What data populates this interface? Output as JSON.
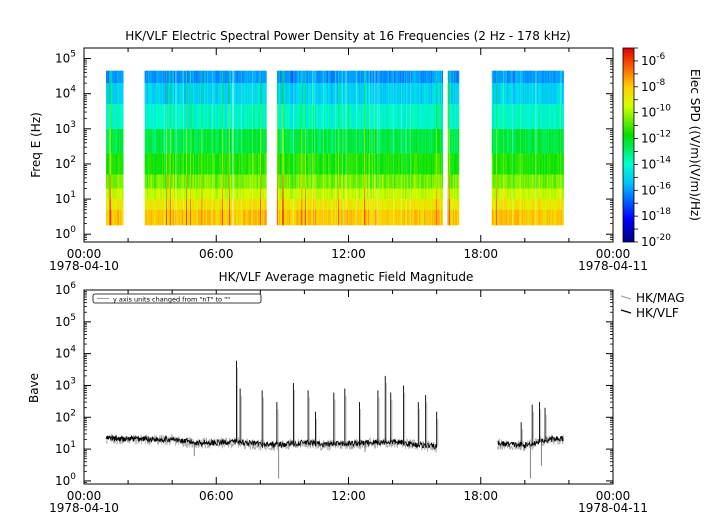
{
  "chart_data": [
    {
      "type": "heatmap",
      "title": "HK/VLF  Electric Spectral Power Density at 16 Frequencies (2 Hz - 178 kHz)",
      "ylabel": "Freq E (Hz)",
      "yscale": "log",
      "ylim": [
        0.6,
        200000
      ],
      "y_ticks": [
        {
          "base": "10",
          "exp": "0"
        },
        {
          "base": "10",
          "exp": "1"
        },
        {
          "base": "10",
          "exp": "2"
        },
        {
          "base": "10",
          "exp": "3"
        },
        {
          "base": "10",
          "exp": "4"
        },
        {
          "base": "10",
          "exp": "5"
        }
      ],
      "x_ticks": [
        {
          "label": "00:00",
          "date": "1978-04-10"
        },
        {
          "label": "06:00",
          "date": ""
        },
        {
          "label": "12:00",
          "date": ""
        },
        {
          "label": "18:00",
          "date": ""
        },
        {
          "label": "00:00",
          "date": "1978-04-11"
        }
      ],
      "frequency_range_hz": [
        2,
        178000
      ],
      "num_frequencies": 16,
      "data_intervals": [
        [
          "01:00",
          "01:45"
        ],
        [
          "02:45",
          "08:15"
        ],
        [
          "08:45",
          "16:15"
        ],
        [
          "16:30",
          "17:00"
        ],
        [
          "18:30",
          "21:45"
        ]
      ],
      "colorbar": {
        "label": "Elec SPD ((V/m)(V/m)/Hz)",
        "log_min": -20,
        "log_max": -5,
        "ticks": [
          {
            "base": "10",
            "exp": "-6"
          },
          {
            "base": "10",
            "exp": "-8"
          },
          {
            "base": "10",
            "exp": "-10"
          },
          {
            "base": "10",
            "exp": "-12"
          },
          {
            "base": "10",
            "exp": "-14"
          },
          {
            "base": "10",
            "exp": "-16"
          },
          {
            "base": "10",
            "exp": "-18"
          },
          {
            "base": "10",
            "exp": "-20"
          }
        ]
      },
      "spd_log10_by_freq_band": [
        {
          "freq_range_hz": [
            1.8,
            5
          ],
          "log_spd": -8
        },
        {
          "freq_range_hz": [
            5,
            10
          ],
          "log_spd": -8.7
        },
        {
          "freq_range_hz": [
            10,
            20
          ],
          "log_spd": -9.5
        },
        {
          "freq_range_hz": [
            20,
            50
          ],
          "log_spd": -10.5
        },
        {
          "freq_range_hz": [
            50,
            200
          ],
          "log_spd": -11.5
        },
        {
          "freq_range_hz": [
            200,
            1000
          ],
          "log_spd": -12.5
        },
        {
          "freq_range_hz": [
            1000,
            5000
          ],
          "log_spd": -14
        },
        {
          "freq_range_hz": [
            5000,
            20000
          ],
          "log_spd": -15
        },
        {
          "freq_range_hz": [
            20000,
            45000
          ],
          "log_spd": -16
        }
      ]
    },
    {
      "type": "line",
      "title": "HK/VLF  Average magnetic Field Magnitude",
      "ylabel": "Bave",
      "yscale": "log",
      "ylim": [
        0.8,
        1000000
      ],
      "annotation": "y axis units changed from \"nT\" to \"\"",
      "y_ticks": [
        {
          "base": "10",
          "exp": "0"
        },
        {
          "base": "10",
          "exp": "1"
        },
        {
          "base": "10",
          "exp": "2"
        },
        {
          "base": "10",
          "exp": "3"
        },
        {
          "base": "10",
          "exp": "4"
        },
        {
          "base": "10",
          "exp": "5"
        },
        {
          "base": "10",
          "exp": "6"
        }
      ],
      "x_ticks": [
        {
          "label": "00:00",
          "date": "1978-04-10"
        },
        {
          "label": "06:00",
          "date": ""
        },
        {
          "label": "12:00",
          "date": ""
        },
        {
          "label": "18:00",
          "date": ""
        },
        {
          "label": "00:00",
          "date": "1978-04-11"
        }
      ],
      "series": [
        {
          "name": "HK/MAG",
          "color": "#a8a8a8"
        },
        {
          "name": "HK/VLF",
          "color": "#000000"
        }
      ],
      "baseline": [
        {
          "x": "01:00",
          "y": 22
        },
        {
          "x": "01:45",
          "y": 21
        },
        {
          "x": "02:45",
          "y": 21
        },
        {
          "x": "04:00",
          "y": 20
        },
        {
          "x": "05:00",
          "y": 16
        },
        {
          "x": "06:00",
          "y": 16
        },
        {
          "x": "07:00",
          "y": 17
        },
        {
          "x": "08:00",
          "y": 14
        },
        {
          "x": "09:00",
          "y": 14
        },
        {
          "x": "10:00",
          "y": 16
        },
        {
          "x": "11:00",
          "y": 14
        },
        {
          "x": "12:00",
          "y": 15
        },
        {
          "x": "13:00",
          "y": 16
        },
        {
          "x": "14:00",
          "y": 17
        },
        {
          "x": "15:00",
          "y": 14
        },
        {
          "x": "16:00",
          "y": 12
        },
        {
          "x": "18:45",
          "y": 15
        },
        {
          "x": "19:30",
          "y": 14
        },
        {
          "x": "20:00",
          "y": 13
        },
        {
          "x": "20:30",
          "y": 16
        },
        {
          "x": "21:00",
          "y": 20
        },
        {
          "x": "21:45",
          "y": 22
        }
      ],
      "spikes": [
        {
          "x": "06:55",
          "y": 6000
        },
        {
          "x": "07:05",
          "y": 800
        },
        {
          "x": "08:05",
          "y": 700
        },
        {
          "x": "08:45",
          "y": 300
        },
        {
          "x": "09:30",
          "y": 1200
        },
        {
          "x": "10:10",
          "y": 700
        },
        {
          "x": "10:30",
          "y": 150
        },
        {
          "x": "11:20",
          "y": 600
        },
        {
          "x": "11:50",
          "y": 800
        },
        {
          "x": "12:30",
          "y": 300
        },
        {
          "x": "13:20",
          "y": 700
        },
        {
          "x": "13:40",
          "y": 2000
        },
        {
          "x": "13:55",
          "y": 600
        },
        {
          "x": "14:30",
          "y": 1000
        },
        {
          "x": "15:10",
          "y": 300
        },
        {
          "x": "15:30",
          "y": 500
        },
        {
          "x": "16:00",
          "y": 150
        },
        {
          "x": "19:50",
          "y": 70
        },
        {
          "x": "20:20",
          "y": 250
        },
        {
          "x": "20:40",
          "y": 300
        },
        {
          "x": "20:55",
          "y": 200
        }
      ],
      "dips": [
        {
          "x": "05:00",
          "y": 6
        },
        {
          "x": "08:50",
          "y": 1.2
        },
        {
          "x": "12:45",
          "y": 8
        },
        {
          "x": "20:15",
          "y": 1.2
        },
        {
          "x": "20:45",
          "y": 3
        }
      ]
    }
  ]
}
